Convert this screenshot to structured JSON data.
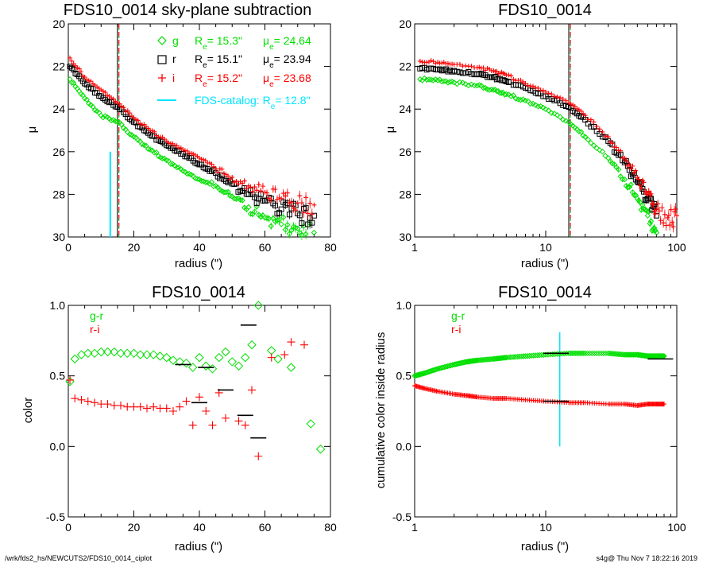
{
  "footer": {
    "left": "/wrk/fds2_hs/NEWCUTS2/FDS10_0014_ciplot",
    "right": "s4g@  Thu Nov  7 18:22:16 2019"
  },
  "colors": {
    "g": "#00e000",
    "r": "#000000",
    "i": "#ff0000",
    "catalog": "#00e5ff",
    "vline_dash": "#e00000",
    "vline_solid": "#000000",
    "dash_green": "#00a000"
  },
  "legend_top_left": {
    "g_label": "g",
    "r_label": "r",
    "i_label": "i",
    "g_re": "R_e= 15.3\"",
    "g_mu": "μ_e= 24.64",
    "r_re": "R_e= 15.1\"",
    "r_mu": "μ_e= 23.94",
    "i_re": "R_e= 15.2\"",
    "i_mu": "μ_e= 23.68",
    "catalog": "FDS-catalog: R_e= 12.8\""
  },
  "legend_bottom": {
    "gr": "g-r",
    "ri": "r-i"
  },
  "chart_data": [
    {
      "id": "panel-tl",
      "type": "scatter",
      "title": "FDS10_0014 sky-plane subtraction",
      "xlabel": "radius (\")",
      "ylabel": "μ",
      "xlim": [
        0,
        80
      ],
      "ylim": [
        30,
        20
      ],
      "xticks": [
        0,
        20,
        40,
        60,
        80
      ],
      "yticks": [
        20,
        22,
        24,
        26,
        28,
        30
      ],
      "x_scale": "linear",
      "re_line": 15.2,
      "catalog_re": 12.8,
      "catalog_segment": [
        26,
        30
      ],
      "series": [
        {
          "name": "g",
          "marker": "diamond",
          "points": [
            [
              0.5,
              22.6
            ],
            [
              5,
              23.5
            ],
            [
              10,
              24.3
            ],
            [
              15,
              24.6
            ],
            [
              20,
              25.3
            ],
            [
              25,
              25.9
            ],
            [
              30,
              26.4
            ],
            [
              35,
              26.9
            ],
            [
              40,
              27.3
            ],
            [
              45,
              27.6
            ],
            [
              50,
              28.1
            ],
            [
              55,
              28.6
            ],
            [
              60,
              29.1
            ],
            [
              65,
              29.4
            ],
            [
              70,
              29.6
            ],
            [
              75,
              29.8
            ]
          ]
        },
        {
          "name": "r",
          "marker": "square",
          "points": [
            [
              0.5,
              22.0
            ],
            [
              5,
              22.8
            ],
            [
              10,
              23.4
            ],
            [
              15,
              23.9
            ],
            [
              20,
              24.6
            ],
            [
              25,
              25.2
            ],
            [
              30,
              25.7
            ],
            [
              35,
              26.1
            ],
            [
              40,
              26.6
            ],
            [
              45,
              27.0
            ],
            [
              50,
              27.5
            ],
            [
              55,
              28.0
            ],
            [
              60,
              28.3
            ],
            [
              65,
              28.7
            ],
            [
              70,
              28.9
            ],
            [
              75,
              29.0
            ]
          ]
        },
        {
          "name": "i",
          "marker": "plus",
          "points": [
            [
              0.5,
              21.6
            ],
            [
              5,
              22.5
            ],
            [
              10,
              23.1
            ],
            [
              15,
              23.7
            ],
            [
              20,
              24.4
            ],
            [
              25,
              25.0
            ],
            [
              30,
              25.5
            ],
            [
              35,
              25.9
            ],
            [
              40,
              26.3
            ],
            [
              45,
              26.8
            ],
            [
              50,
              27.2
            ],
            [
              55,
              27.6
            ],
            [
              60,
              27.9
            ],
            [
              65,
              28.2
            ],
            [
              70,
              28.4
            ],
            [
              75,
              28.5
            ]
          ]
        }
      ]
    },
    {
      "id": "panel-tr",
      "type": "scatter",
      "title": "FDS10_0014",
      "xlabel": "radius (\")",
      "ylabel": "μ",
      "xlim": [
        1,
        100
      ],
      "ylim": [
        30,
        20
      ],
      "xticks": [
        1,
        10,
        100
      ],
      "yticks": [
        20,
        22,
        24,
        26,
        28,
        30
      ],
      "x_scale": "log",
      "re_line": 15.2,
      "series": [
        {
          "name": "g",
          "marker": "diamond",
          "points": [
            [
              1.1,
              22.6
            ],
            [
              1.5,
              22.65
            ],
            [
              2,
              22.75
            ],
            [
              3,
              22.9
            ],
            [
              4,
              23.1
            ],
            [
              5,
              23.3
            ],
            [
              7,
              23.6
            ],
            [
              10,
              24.0
            ],
            [
              15,
              24.6
            ],
            [
              20,
              25.3
            ],
            [
              30,
              26.3
            ],
            [
              40,
              27.3
            ],
            [
              50,
              28.2
            ],
            [
              60,
              29.0
            ],
            [
              70,
              29.8
            ]
          ]
        },
        {
          "name": "r",
          "marker": "square",
          "points": [
            [
              1.1,
              22.1
            ],
            [
              1.5,
              22.15
            ],
            [
              2,
              22.2
            ],
            [
              3,
              22.35
            ],
            [
              4,
              22.5
            ],
            [
              5,
              22.7
            ],
            [
              7,
              23.0
            ],
            [
              10,
              23.4
            ],
            [
              15,
              23.9
            ],
            [
              20,
              24.5
            ],
            [
              30,
              25.5
            ],
            [
              40,
              26.5
            ],
            [
              50,
              27.4
            ],
            [
              60,
              28.2
            ],
            [
              70,
              29.0
            ]
          ]
        },
        {
          "name": "i",
          "marker": "plus",
          "points": [
            [
              1.1,
              21.75
            ],
            [
              1.5,
              21.8
            ],
            [
              2,
              21.9
            ],
            [
              3,
              22.05
            ],
            [
              4,
              22.2
            ],
            [
              5,
              22.4
            ],
            [
              7,
              22.8
            ],
            [
              10,
              23.2
            ],
            [
              15,
              23.7
            ],
            [
              20,
              24.3
            ],
            [
              30,
              25.3
            ],
            [
              40,
              26.3
            ],
            [
              50,
              27.2
            ],
            [
              60,
              28.0
            ],
            [
              70,
              28.7
            ],
            [
              85,
              29.1
            ],
            [
              100,
              29.0
            ]
          ]
        }
      ]
    },
    {
      "id": "panel-bl",
      "type": "scatter",
      "title": "FDS10_0014",
      "xlabel": "radius (\")",
      "ylabel": "color",
      "xlim": [
        0,
        80
      ],
      "ylim": [
        -0.5,
        1.0
      ],
      "xticks": [
        0,
        20,
        40,
        60,
        80
      ],
      "yticks": [
        -0.5,
        0.0,
        0.5,
        1.0
      ],
      "x_scale": "linear",
      "series": [
        {
          "name": "g-r",
          "marker": "diamond",
          "points": [
            [
              0.5,
              0.46
            ],
            [
              2,
              0.62
            ],
            [
              4,
              0.65
            ],
            [
              6,
              0.66
            ],
            [
              8,
              0.66
            ],
            [
              10,
              0.67
            ],
            [
              12,
              0.67
            ],
            [
              14,
              0.67
            ],
            [
              16,
              0.66
            ],
            [
              18,
              0.66
            ],
            [
              20,
              0.66
            ],
            [
              22,
              0.65
            ],
            [
              24,
              0.65
            ],
            [
              26,
              0.65
            ],
            [
              28,
              0.64
            ],
            [
              30,
              0.63
            ],
            [
              32,
              0.61
            ],
            [
              34,
              0.6
            ],
            [
              36,
              0.59
            ],
            [
              38,
              0.56
            ],
            [
              40,
              0.63
            ],
            [
              42,
              0.57
            ],
            [
              44,
              0.55
            ],
            [
              46,
              0.63
            ],
            [
              48,
              0.67
            ],
            [
              50,
              0.6
            ],
            [
              52,
              0.57
            ],
            [
              54,
              0.63
            ],
            [
              56,
              0.72
            ],
            [
              58,
              1.0
            ],
            [
              62,
              0.68
            ],
            [
              64,
              0.62
            ],
            [
              68,
              0.56
            ],
            [
              74,
              0.16
            ],
            [
              77,
              -0.02
            ]
          ]
        },
        {
          "name": "r-i",
          "marker": "plus",
          "points": [
            [
              0.5,
              0.47
            ],
            [
              2,
              0.34
            ],
            [
              4,
              0.33
            ],
            [
              6,
              0.32
            ],
            [
              8,
              0.31
            ],
            [
              10,
              0.3
            ],
            [
              12,
              0.3
            ],
            [
              14,
              0.29
            ],
            [
              16,
              0.29
            ],
            [
              18,
              0.28
            ],
            [
              20,
              0.28
            ],
            [
              22,
              0.28
            ],
            [
              24,
              0.27
            ],
            [
              26,
              0.28
            ],
            [
              28,
              0.27
            ],
            [
              30,
              0.27
            ],
            [
              32,
              0.25
            ],
            [
              34,
              0.28
            ],
            [
              36,
              0.32
            ],
            [
              38,
              0.15
            ],
            [
              40,
              0.35
            ],
            [
              42,
              0.25
            ],
            [
              44,
              0.15
            ],
            [
              46,
              0.38
            ],
            [
              48,
              0.2
            ],
            [
              52,
              0.18
            ],
            [
              54,
              0.15
            ],
            [
              56,
              0.4
            ],
            [
              58,
              -0.07
            ],
            [
              62,
              0.63
            ],
            [
              66,
              0.65
            ],
            [
              68,
              0.74
            ],
            [
              72,
              0.72
            ]
          ]
        }
      ],
      "binned_segments": [
        [
          35,
          0.58
        ],
        [
          42,
          0.56
        ],
        [
          40,
          0.31
        ],
        [
          48,
          0.4
        ],
        [
          55,
          0.86
        ],
        [
          54,
          0.22
        ],
        [
          58,
          0.06
        ]
      ]
    },
    {
      "id": "panel-br",
      "type": "scatter",
      "title": "FDS10_0014",
      "xlabel": "radius (\")",
      "ylabel": "cumulative color inside radius",
      "xlim": [
        1,
        100
      ],
      "ylim": [
        -0.5,
        1.0
      ],
      "xticks": [
        1,
        10,
        100
      ],
      "yticks": [
        -0.5,
        0.0,
        0.5,
        1.0
      ],
      "x_scale": "log",
      "re_line": 12.8,
      "re_segment": [
        0.0,
        0.81
      ],
      "series": [
        {
          "name": "g-r",
          "marker": "diamond",
          "points": [
            [
              1.0,
              0.5
            ],
            [
              1.2,
              0.52
            ],
            [
              1.5,
              0.55
            ],
            [
              2,
              0.58
            ],
            [
              2.5,
              0.6
            ],
            [
              3,
              0.61
            ],
            [
              4,
              0.62
            ],
            [
              5,
              0.63
            ],
            [
              7,
              0.64
            ],
            [
              10,
              0.65
            ],
            [
              15,
              0.66
            ],
            [
              20,
              0.66
            ],
            [
              30,
              0.66
            ],
            [
              40,
              0.65
            ],
            [
              50,
              0.65
            ],
            [
              60,
              0.64
            ],
            [
              70,
              0.64
            ],
            [
              80,
              0.64
            ]
          ]
        },
        {
          "name": "r-i",
          "marker": "plus",
          "points": [
            [
              1.0,
              0.43
            ],
            [
              1.2,
              0.41
            ],
            [
              1.5,
              0.39
            ],
            [
              2,
              0.37
            ],
            [
              2.5,
              0.36
            ],
            [
              3,
              0.35
            ],
            [
              4,
              0.34
            ],
            [
              5,
              0.34
            ],
            [
              7,
              0.33
            ],
            [
              10,
              0.32
            ],
            [
              15,
              0.31
            ],
            [
              20,
              0.31
            ],
            [
              30,
              0.3
            ],
            [
              40,
              0.3
            ],
            [
              50,
              0.29
            ],
            [
              60,
              0.3
            ],
            [
              70,
              0.3
            ],
            [
              80,
              0.3
            ]
          ]
        }
      ],
      "binned_segments": [
        [
          12,
          0.66
        ],
        [
          12,
          0.32
        ],
        [
          75,
          0.62
        ]
      ]
    }
  ]
}
